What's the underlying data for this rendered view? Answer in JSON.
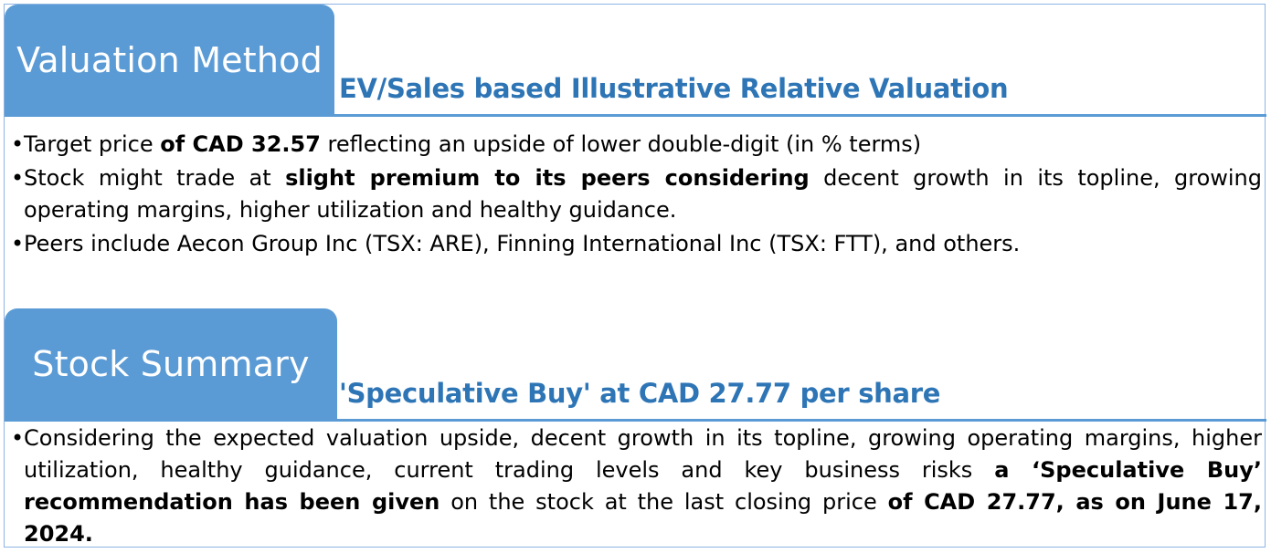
{
  "valuation": {
    "tab_label": "Valuation Method",
    "subheading": "EV/Sales based Illustrative Relative Valuation",
    "bullets": [
      {
        "segments": [
          {
            "text": "Target price ",
            "bold": false
          },
          {
            "text": "of CAD 32.57",
            "bold": true
          },
          {
            "text": " reflecting an upside of lower double-digit (in % terms)",
            "bold": false
          }
        ]
      },
      {
        "segments": [
          {
            "text": "Stock might trade at ",
            "bold": false
          },
          {
            "text": "slight premium to its peers considering",
            "bold": true
          },
          {
            "text": " decent growth in its topline, growing operating margins, higher utilization and healthy guidance.",
            "bold": false
          }
        ]
      },
      {
        "segments": [
          {
            "text": "Peers include Aecon Group Inc (TSX: ARE), Finning International Inc (TSX: FTT), and others.",
            "bold": false
          }
        ]
      }
    ]
  },
  "summary": {
    "tab_label": "Stock Summary",
    "subheading": "'Speculative Buy' at CAD 27.77 per share",
    "bullets": [
      {
        "segments": [
          {
            "text": "Considering the expected valuation upside, decent growth in its topline, growing operating margins, higher utilization, healthy guidance, current trading levels and key business risks ",
            "bold": false
          },
          {
            "text": "a ‘Speculative Buy’ recommendation has been given",
            "bold": true
          },
          {
            "text": " on the stock at the last closing price ",
            "bold": false
          },
          {
            "text": "of CAD 27.77, as on June 17, 2024.",
            "bold": true
          }
        ]
      }
    ]
  },
  "bullet_glyph": "•",
  "colors": {
    "tab_background": "#5b9bd5",
    "subheading": "#2e75b6",
    "border": "#8eb4e3"
  }
}
